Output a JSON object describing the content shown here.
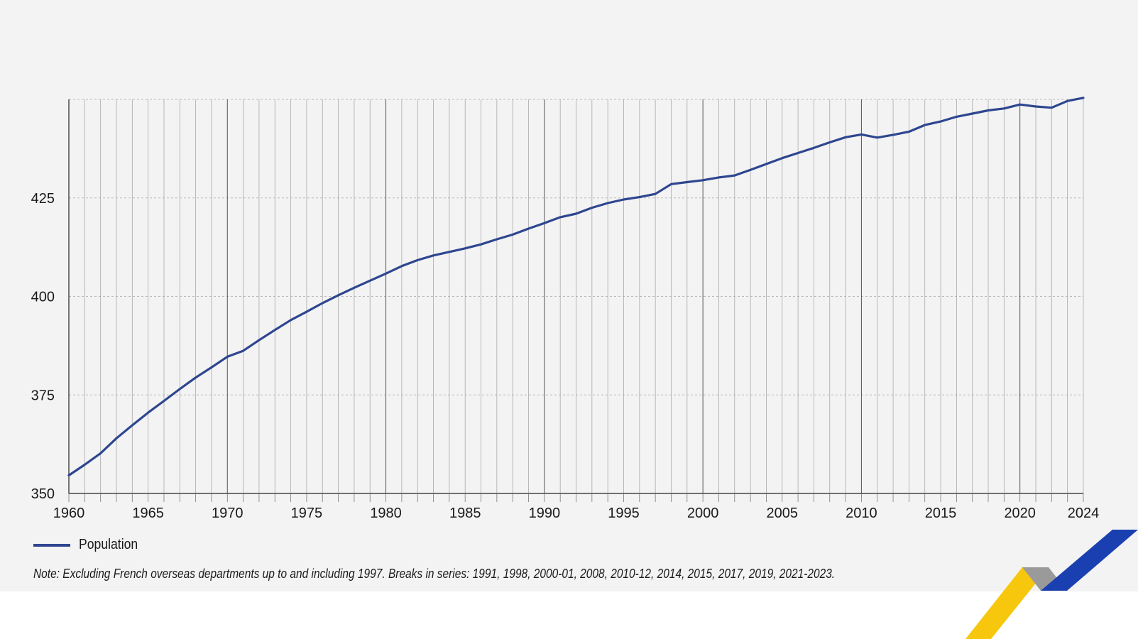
{
  "chart_data": {
    "type": "line",
    "title": "",
    "xlabel": "",
    "ylabel": "",
    "xlim": [
      1960,
      2024
    ],
    "ylim": [
      350,
      450
    ],
    "yticks": [
      350,
      375,
      400,
      425
    ],
    "xticks": [
      1960,
      1965,
      1970,
      1975,
      1980,
      1985,
      1990,
      1995,
      2000,
      2005,
      2010,
      2015,
      2020,
      2024
    ],
    "grid": true,
    "legend_position": "bottom-left",
    "series": [
      {
        "name": "Population",
        "color": "#2e4690",
        "x": [
          1960,
          1961,
          1962,
          1963,
          1964,
          1965,
          1966,
          1967,
          1968,
          1969,
          1970,
          1971,
          1972,
          1973,
          1974,
          1975,
          1976,
          1977,
          1978,
          1979,
          1980,
          1981,
          1982,
          1983,
          1984,
          1985,
          1986,
          1987,
          1988,
          1989,
          1990,
          1991,
          1992,
          1993,
          1994,
          1995,
          1996,
          1997,
          1998,
          1999,
          2000,
          2001,
          2002,
          2003,
          2004,
          2005,
          2006,
          2007,
          2008,
          2009,
          2010,
          2011,
          2012,
          2013,
          2014,
          2015,
          2016,
          2017,
          2018,
          2019,
          2020,
          2021,
          2022,
          2023,
          2024
        ],
        "values": [
          354.6,
          357.3,
          360.2,
          364.0,
          367.3,
          370.5,
          373.5,
          376.5,
          379.4,
          382.0,
          384.7,
          386.2,
          388.9,
          391.5,
          394.0,
          396.1,
          398.3,
          400.3,
          402.2,
          404.0,
          405.8,
          407.7,
          409.2,
          410.4,
          411.3,
          412.2,
          413.2,
          414.5,
          415.7,
          417.2,
          418.6,
          420.1,
          421.0,
          422.5,
          423.7,
          424.6,
          425.2,
          426.0,
          428.5,
          429.0,
          429.5,
          430.2,
          430.7,
          432.1,
          433.6,
          435.1,
          436.4,
          437.7,
          439.1,
          440.4,
          441.1,
          440.3,
          441.0,
          441.8,
          443.5,
          444.4,
          445.6,
          446.4,
          447.2,
          447.7,
          448.7,
          448.2,
          447.9,
          449.6,
          450.4
        ]
      }
    ],
    "legend_label": "Population",
    "note": "Note: Excluding French overseas departments up to and including 1997. Breaks in series: 1991, 1998, 2000-01, 2008, 2010-12, 2014, 2015, 2017, 2019, 2021-2023."
  },
  "colors": {
    "background": "#f3f3f3",
    "line": "#2e4690",
    "logo_yellow": "#f5c400",
    "logo_gray": "#9a9a9a",
    "logo_blue": "#1a3fb0"
  }
}
